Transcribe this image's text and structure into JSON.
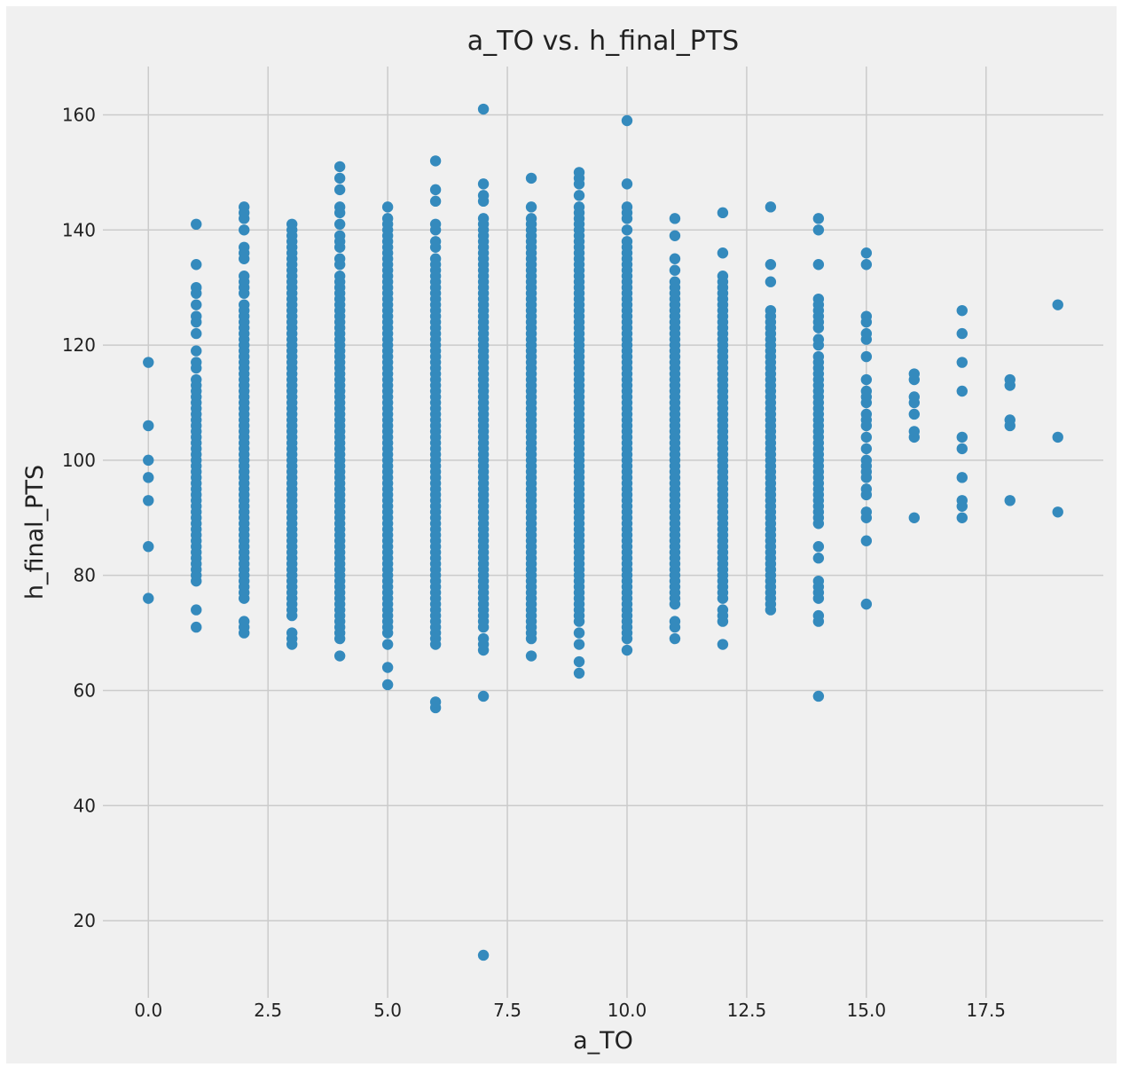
{
  "chart_data": {
    "type": "scatter",
    "title": "a_TO vs. h_final_PTS",
    "xlabel": "a_TO",
    "ylabel": "h_final_PTS",
    "xlim": [
      -0.95,
      19.95
    ],
    "ylim": [
      6.6,
      168.4
    ],
    "xticks": [
      0.0,
      2.5,
      5.0,
      7.5,
      10.0,
      12.5,
      15.0,
      17.5
    ],
    "xtick_labels": [
      "0.0",
      "2.5",
      "5.0",
      "7.5",
      "10.0",
      "12.5",
      "15.0",
      "17.5"
    ],
    "yticks": [
      20,
      40,
      60,
      80,
      100,
      120,
      140,
      160
    ],
    "ytick_labels": [
      "20",
      "40",
      "60",
      "80",
      "100",
      "120",
      "140",
      "160"
    ],
    "grid": true,
    "marker_color": "#348ABD",
    "background_color": "#F0F0F0",
    "grid_color": "#CBCBCB",
    "columns": [
      {
        "x": 0,
        "runs": [],
        "points": [
          76,
          85,
          93,
          97,
          100,
          106,
          117
        ]
      },
      {
        "x": 1,
        "runs": [
          [
            79,
            114
          ]
        ],
        "points": [
          71,
          74,
          116,
          117,
          119,
          122,
          124,
          125,
          127,
          129,
          130,
          134,
          141
        ]
      },
      {
        "x": 2,
        "runs": [
          [
            76,
            126
          ]
        ],
        "points": [
          70,
          71,
          72,
          127,
          129,
          130,
          131,
          132,
          135,
          136,
          137,
          140,
          142,
          143,
          144
        ]
      },
      {
        "x": 3,
        "runs": [
          [
            73,
            141
          ]
        ],
        "points": [
          68,
          69,
          70
        ]
      },
      {
        "x": 4,
        "runs": [
          [
            69,
            131
          ]
        ],
        "points": [
          66,
          132,
          134,
          135,
          137,
          138,
          139,
          141,
          143,
          144,
          147,
          149,
          151
        ]
      },
      {
        "x": 5,
        "runs": [
          [
            70,
            142
          ]
        ],
        "points": [
          61,
          64,
          68,
          144
        ]
      },
      {
        "x": 6,
        "runs": [
          [
            70,
            135
          ]
        ],
        "points": [
          57,
          58,
          68,
          69,
          137,
          138,
          140,
          141,
          145,
          147,
          152
        ]
      },
      {
        "x": 7,
        "runs": [
          [
            71,
            138
          ]
        ],
        "points": [
          14,
          59,
          67,
          68,
          69,
          139,
          140,
          141,
          142,
          145,
          146,
          148,
          161
        ]
      },
      {
        "x": 8,
        "runs": [
          [
            69,
            142
          ]
        ],
        "points": [
          66,
          144,
          149
        ]
      },
      {
        "x": 9,
        "runs": [
          [
            72,
            140
          ]
        ],
        "points": [
          63,
          65,
          68,
          70,
          141,
          142,
          143,
          144,
          146,
          148,
          149,
          150
        ]
      },
      {
        "x": 10,
        "runs": [
          [
            69,
            137
          ]
        ],
        "points": [
          67,
          138,
          140,
          142,
          143,
          144,
          148,
          159
        ]
      },
      {
        "x": 11,
        "runs": [
          [
            77,
            131
          ]
        ],
        "points": [
          69,
          71,
          72,
          75,
          76,
          133,
          135,
          139,
          142
        ]
      },
      {
        "x": 12,
        "runs": [
          [
            77,
            132
          ]
        ],
        "points": [
          68,
          72,
          73,
          74,
          76,
          136,
          143
        ]
      },
      {
        "x": 13,
        "runs": [
          [
            84,
            126
          ]
        ],
        "points": [
          74,
          75,
          76,
          77,
          78,
          79,
          80,
          81,
          82,
          83,
          87,
          89,
          131,
          134,
          144
        ]
      },
      {
        "x": 14,
        "runs": [
          [
            89,
            118
          ]
        ],
        "points": [
          59,
          72,
          73,
          76,
          77,
          78,
          79,
          83,
          85,
          120,
          121,
          123,
          124,
          125,
          126,
          127,
          128,
          134,
          140,
          142
        ]
      },
      {
        "x": 15,
        "runs": [],
        "points": [
          75,
          86,
          90,
          91,
          94,
          95,
          97,
          98,
          99,
          100,
          102,
          104,
          106,
          107,
          108,
          110,
          111,
          112,
          114,
          118,
          121,
          122,
          124,
          125,
          134,
          136
        ]
      },
      {
        "x": 16,
        "runs": [],
        "points": [
          90,
          104,
          105,
          108,
          110,
          111,
          114,
          115
        ]
      },
      {
        "x": 17,
        "runs": [],
        "points": [
          90,
          92,
          93,
          97,
          102,
          104,
          112,
          117,
          122,
          126
        ]
      },
      {
        "x": 18,
        "runs": [],
        "points": [
          93,
          106,
          107,
          113,
          114
        ]
      },
      {
        "x": 19,
        "runs": [],
        "points": [
          91,
          104,
          127
        ]
      }
    ]
  }
}
